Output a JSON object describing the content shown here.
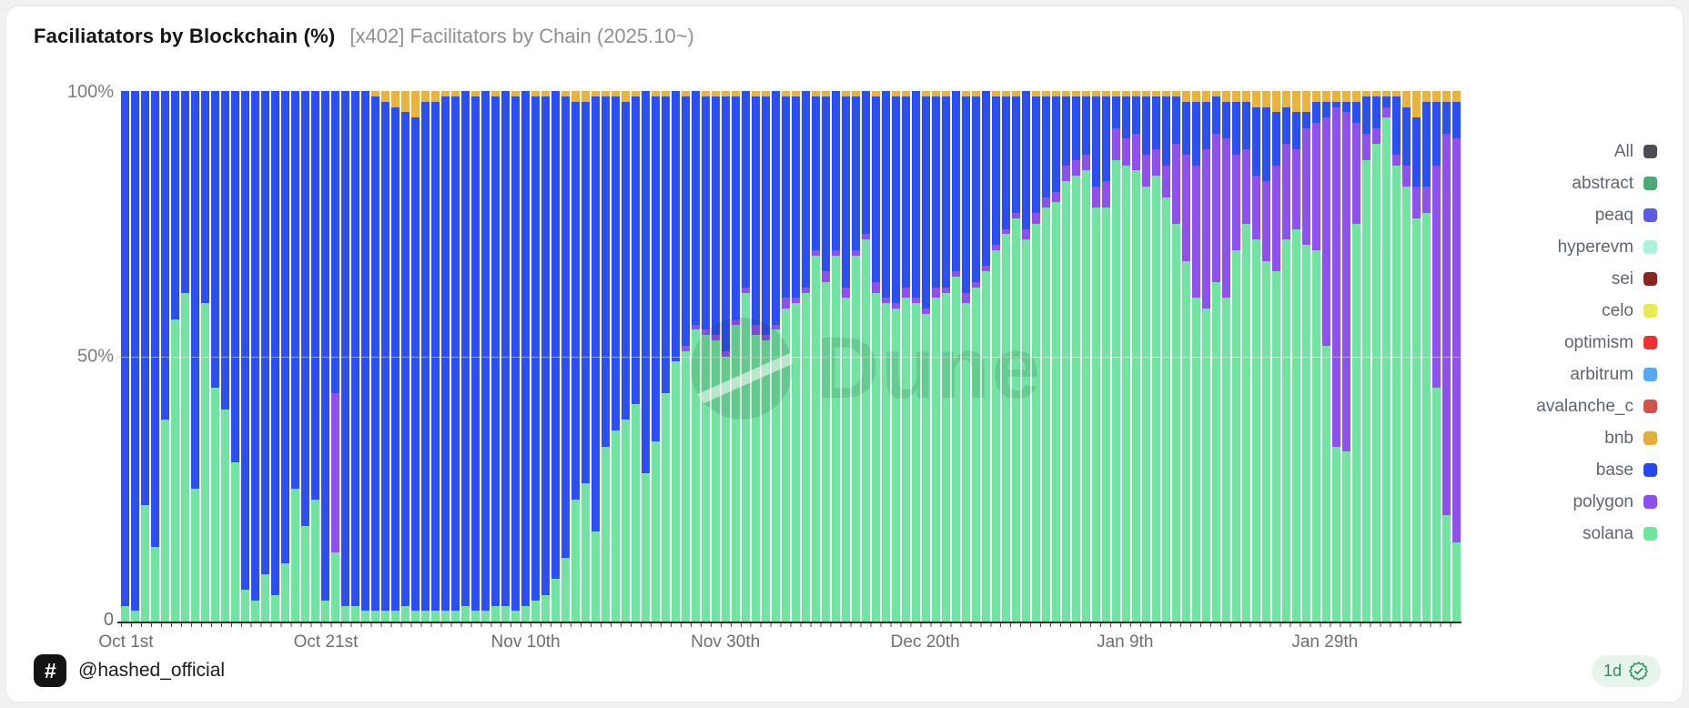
{
  "header": {
    "title": "Faciliatators by Blockchain (%)",
    "subtitle": "[x402] Facilitators by Chain (2025.10~)"
  },
  "watermark": "Dune",
  "footer": {
    "logo_glyph": "#",
    "handle": "@hashed_official",
    "badge": {
      "label": "1d",
      "icon": "verified-seal-icon"
    }
  },
  "chart_data": {
    "type": "bar",
    "stacked": true,
    "percent": true,
    "title": "Faciliatators by Blockchain (%)",
    "xlabel": "",
    "ylabel": "",
    "ylim": [
      0,
      100
    ],
    "yticks": [
      "100%",
      "50%",
      "0"
    ],
    "xticks": [
      "Oct 1st",
      "Oct 21st",
      "Nov 10th",
      "Nov 30th",
      "Dec 20th",
      "Jan 9th",
      "Jan 29th"
    ],
    "xtick_day_indices": [
      0,
      20,
      40,
      60,
      80,
      100,
      120
    ],
    "grid": "faint line at 50%",
    "legend_position": "right",
    "stack_order_bottom_to_top": [
      "solana",
      "polygon",
      "base",
      "bnb"
    ],
    "x": [
      "Oct 1",
      "Oct 2",
      "Oct 3",
      "Oct 4",
      "Oct 5",
      "Oct 6",
      "Oct 7",
      "Oct 8",
      "Oct 9",
      "Oct 10",
      "Oct 11",
      "Oct 12",
      "Oct 13",
      "Oct 14",
      "Oct 15",
      "Oct 16",
      "Oct 17",
      "Oct 18",
      "Oct 19",
      "Oct 20",
      "Oct 21",
      "Oct 22",
      "Oct 23",
      "Oct 24",
      "Oct 25",
      "Oct 26",
      "Oct 27",
      "Oct 28",
      "Oct 29",
      "Oct 30",
      "Oct 31",
      "Nov 1",
      "Nov 2",
      "Nov 3",
      "Nov 4",
      "Nov 5",
      "Nov 6",
      "Nov 7",
      "Nov 8",
      "Nov 9",
      "Nov 10",
      "Nov 11",
      "Nov 12",
      "Nov 13",
      "Nov 14",
      "Nov 15",
      "Nov 16",
      "Nov 17",
      "Nov 18",
      "Nov 19",
      "Nov 20",
      "Nov 21",
      "Nov 22",
      "Nov 23",
      "Nov 24",
      "Nov 25",
      "Nov 26",
      "Nov 27",
      "Nov 28",
      "Nov 29",
      "Nov 30",
      "Dec 1",
      "Dec 2",
      "Dec 3",
      "Dec 4",
      "Dec 5",
      "Dec 6",
      "Dec 7",
      "Dec 8",
      "Dec 9",
      "Dec 10",
      "Dec 11",
      "Dec 12",
      "Dec 13",
      "Dec 14",
      "Dec 15",
      "Dec 16",
      "Dec 17",
      "Dec 18",
      "Dec 19",
      "Dec 20",
      "Dec 21",
      "Dec 22",
      "Dec 23",
      "Dec 24",
      "Dec 25",
      "Dec 26",
      "Dec 27",
      "Dec 28",
      "Dec 29",
      "Dec 30",
      "Dec 31",
      "Jan 1",
      "Jan 2",
      "Jan 3",
      "Jan 4",
      "Jan 5",
      "Jan 6",
      "Jan 7",
      "Jan 8",
      "Jan 9",
      "Jan 10",
      "Jan 11",
      "Jan 12",
      "Jan 13",
      "Jan 14",
      "Jan 15",
      "Jan 16",
      "Jan 17",
      "Jan 18",
      "Jan 19",
      "Jan 20",
      "Jan 21",
      "Jan 22",
      "Jan 23",
      "Jan 24",
      "Jan 25",
      "Jan 26",
      "Jan 27",
      "Jan 28",
      "Jan 29",
      "Jan 30",
      "Jan 31",
      "Feb 1",
      "Feb 2",
      "Feb 3",
      "Feb 4",
      "Feb 5",
      "Feb 6",
      "Feb 7",
      "Feb 8",
      "Feb 9",
      "Feb 10",
      "Feb 11"
    ],
    "series": [
      {
        "name": "solana",
        "color": "#70e4a0",
        "values": [
          3,
          2,
          22,
          14,
          38,
          57,
          62,
          25,
          60,
          44,
          40,
          30,
          6,
          4,
          9,
          5,
          11,
          25,
          18,
          23,
          4,
          13,
          3,
          3,
          2,
          2,
          2,
          2,
          3,
          2,
          2,
          2,
          2,
          2,
          3,
          2,
          2,
          3,
          3,
          2,
          3,
          4,
          5,
          8,
          12,
          23,
          26,
          17,
          33,
          36,
          38,
          41,
          28,
          34,
          43,
          49,
          51,
          55,
          54,
          53,
          50,
          56,
          62,
          54,
          53,
          55,
          59,
          60,
          62,
          69,
          64,
          69,
          61,
          69,
          72,
          62,
          60,
          59,
          61,
          60,
          58,
          61,
          62,
          65,
          60,
          63,
          66,
          70,
          73,
          76,
          72,
          75,
          78,
          79,
          83,
          84,
          85,
          78,
          78,
          87,
          86,
          85,
          82,
          84,
          80,
          75,
          68,
          61,
          59,
          64,
          61,
          70,
          75,
          72,
          68,
          66,
          72,
          74,
          71,
          70,
          52,
          33,
          32,
          75,
          87,
          90,
          95,
          86,
          82,
          76,
          77,
          44,
          20,
          15
        ]
      },
      {
        "name": "polygon",
        "color": "#8e51ef",
        "values": [
          0,
          0,
          0,
          0,
          0,
          0,
          0,
          0,
          0,
          0,
          0,
          0,
          0,
          0,
          0,
          0,
          0,
          0,
          0,
          0,
          0,
          30,
          0,
          0,
          0,
          0,
          0,
          0,
          0,
          0,
          0,
          0,
          0,
          0,
          0,
          0,
          0,
          0,
          0,
          0,
          0,
          0,
          0,
          0,
          0,
          0,
          0,
          0,
          0,
          0,
          0,
          0,
          0,
          0,
          0,
          0,
          1,
          1,
          1,
          1,
          1,
          1,
          1,
          2,
          1,
          1,
          2,
          1,
          1,
          1,
          2,
          1,
          2,
          1,
          1,
          2,
          1,
          1,
          2,
          1,
          1,
          2,
          1,
          1,
          2,
          1,
          1,
          1,
          1,
          1,
          2,
          2,
          2,
          2,
          3,
          3,
          3,
          4,
          5,
          6,
          5,
          7,
          6,
          5,
          6,
          15,
          20,
          25,
          30,
          28,
          30,
          18,
          14,
          12,
          15,
          20,
          18,
          15,
          22,
          24,
          43,
          64,
          64,
          19,
          5,
          3,
          2,
          2,
          4,
          6,
          5,
          42,
          72,
          76
        ]
      },
      {
        "name": "base",
        "color": "#2b4ff2",
        "values": [
          97,
          98,
          78,
          86,
          62,
          43,
          38,
          75,
          40,
          56,
          60,
          70,
          94,
          96,
          91,
          95,
          89,
          75,
          82,
          77,
          96,
          57,
          97,
          97,
          98,
          97,
          96,
          95,
          93,
          93,
          96,
          96,
          97,
          97,
          97,
          97,
          98,
          96,
          97,
          97,
          97,
          95,
          94,
          92,
          87,
          75,
          72,
          82,
          66,
          63,
          60,
          58,
          72,
          65,
          56,
          51,
          47,
          44,
          44,
          45,
          48,
          42,
          37,
          43,
          45,
          44,
          38,
          38,
          37,
          29,
          33,
          30,
          36,
          29,
          27,
          35,
          39,
          39,
          36,
          39,
          40,
          36,
          36,
          34,
          37,
          35,
          33,
          28,
          25,
          22,
          26,
          22,
          19,
          18,
          13,
          12,
          11,
          17,
          16,
          6,
          8,
          7,
          11,
          10,
          13,
          9,
          10,
          12,
          9,
          7,
          7,
          10,
          9,
          13,
          14,
          10,
          7,
          7,
          3,
          4,
          3,
          1,
          2,
          4,
          7,
          6,
          2,
          11,
          11,
          13,
          16,
          12,
          6,
          7
        ]
      },
      {
        "name": "bnb",
        "color": "#e9b340",
        "values": [
          0,
          0,
          0,
          0,
          0,
          0,
          0,
          0,
          0,
          0,
          0,
          0,
          0,
          0,
          0,
          0,
          0,
          0,
          0,
          0,
          0,
          0,
          0,
          0,
          0,
          1,
          2,
          3,
          4,
          5,
          2,
          2,
          1,
          1,
          0,
          1,
          0,
          1,
          0,
          1,
          0,
          1,
          1,
          0,
          1,
          2,
          2,
          1,
          1,
          1,
          2,
          1,
          0,
          1,
          1,
          0,
          1,
          0,
          1,
          1,
          1,
          1,
          0,
          1,
          1,
          0,
          1,
          1,
          0,
          1,
          1,
          0,
          1,
          1,
          0,
          1,
          0,
          1,
          1,
          0,
          1,
          1,
          1,
          0,
          1,
          1,
          0,
          1,
          1,
          1,
          0,
          1,
          1,
          1,
          1,
          1,
          1,
          1,
          1,
          1,
          1,
          1,
          1,
          1,
          1,
          1,
          2,
          2,
          2,
          1,
          2,
          2,
          2,
          3,
          3,
          4,
          3,
          4,
          4,
          2,
          2,
          2,
          2,
          2,
          1,
          1,
          1,
          1,
          3,
          5,
          2,
          2,
          2,
          2
        ]
      }
    ],
    "legend": [
      {
        "label": "All",
        "color": "#4b4b54"
      },
      {
        "label": "abstract",
        "color": "#4caa72"
      },
      {
        "label": "peaq",
        "color": "#5a5ce6"
      },
      {
        "label": "hyperevm",
        "color": "#abf2dc"
      },
      {
        "label": "sei",
        "color": "#8a241c"
      },
      {
        "label": "celo",
        "color": "#e7ea55"
      },
      {
        "label": "optimism",
        "color": "#ee3030"
      },
      {
        "label": "arbitrum",
        "color": "#56a8f2"
      },
      {
        "label": "avalanche_c",
        "color": "#d4514b"
      },
      {
        "label": "bnb",
        "color": "#e4ae3e"
      },
      {
        "label": "base",
        "color": "#2447f0"
      },
      {
        "label": "polygon",
        "color": "#8b4ff0"
      },
      {
        "label": "solana",
        "color": "#6fe59d"
      }
    ]
  }
}
